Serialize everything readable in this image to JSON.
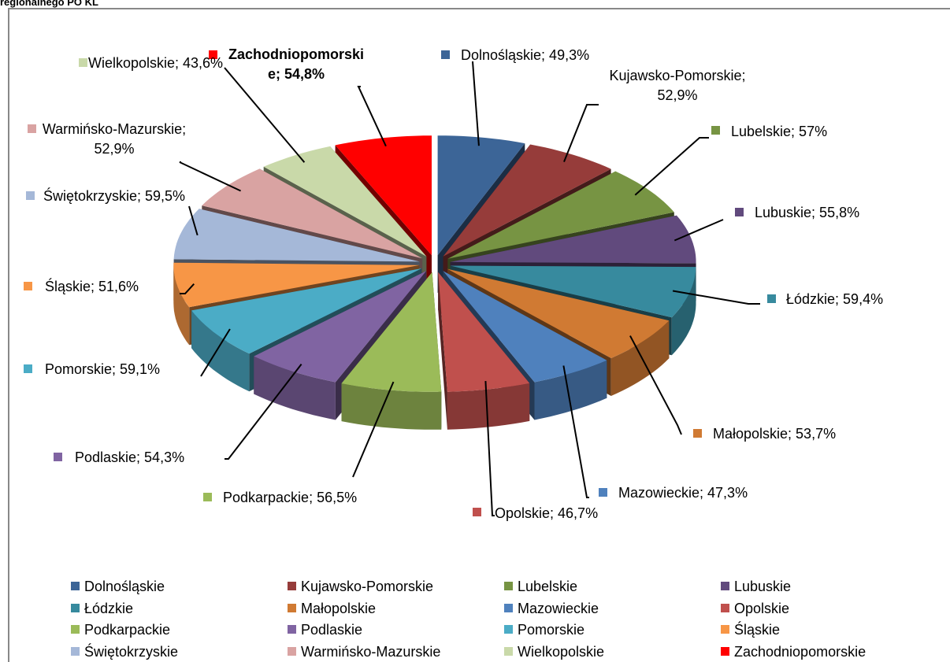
{
  "chart_data": {
    "type": "pie",
    "title": "regionalnego PO KL",
    "categories": [
      "Dolnośląskie",
      "Kujawsko-Pomorskie",
      "Lubelskie",
      "Lubuskie",
      "Łódzkie",
      "Małopolskie",
      "Mazowieckie",
      "Opolskie",
      "Podkarpackie",
      "Podlaskie",
      "Pomorskie",
      "Śląskie",
      "Świętokrzyskie",
      "Warmińsko-Mazurskie",
      "Wielkopolskie",
      "Zachodniopomorskie"
    ],
    "values": [
      49.3,
      52.9,
      57,
      55.8,
      59.4,
      53.7,
      47.3,
      46.7,
      56.5,
      54.3,
      59.1,
      51.6,
      59.5,
      52.9,
      43.6,
      54.8
    ],
    "value_labels": [
      "Dolnośląskie; 49,3%",
      "Kujawsko-Pomorskie; 52,9%",
      "Lubelskie; 57%",
      "Lubuskie; 55,8%",
      "Łódzkie; 59,4%",
      "Małopolskie; 53,7%",
      "Mazowieckie; 47,3%",
      "Opolskie; 46,7%",
      "Podkarpackie; 56,5%",
      "Podlaskie; 54,3%",
      "Pomorskie; 59,1%",
      "Śląskie; 51,6%",
      "Świętokrzyskie; 59,5%",
      "Warmińsko-Mazurskie; 52,9%",
      "Wielkopolskie; 43,6%",
      "Zachodniopomorskie; 54,8%"
    ],
    "colors": [
      "#3c6597",
      "#963c3a",
      "#779443",
      "#614a7d",
      "#378a9e",
      "#d07a33",
      "#4f81bd",
      "#c0504d",
      "#9bbb59",
      "#8064a2",
      "#4bacc6",
      "#f79646",
      "#a5b8d8",
      "#d9a3a2",
      "#c9d9a9",
      "#ff0000"
    ],
    "legend": "bottom"
  }
}
